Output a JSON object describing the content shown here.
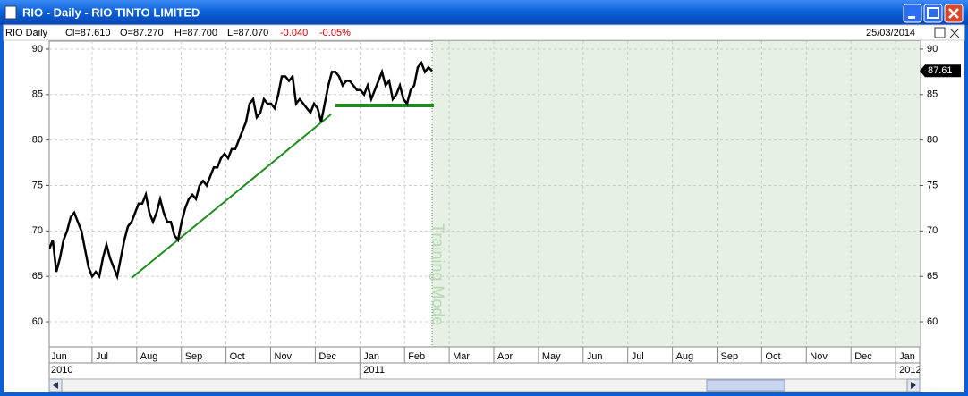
{
  "window": {
    "title": "RIO - Daily - RIO TINTO LIMITED"
  },
  "header": {
    "label": "RIO Daily",
    "close": "Cl=87.610",
    "open": "O=87.270",
    "high": "H=87.700",
    "low": "L=87.070",
    "change": "-0.040",
    "change_pct": "-0.05%",
    "date": "25/03/2014"
  },
  "chart_data": {
    "type": "line",
    "annotation": "Training Mode",
    "months": [
      "Jun",
      "Jul",
      "Aug",
      "Sep",
      "Oct",
      "Nov",
      "Dec",
      "Jan",
      "Feb",
      "Mar",
      "Apr",
      "May",
      "Jun",
      "Jul",
      "Aug",
      "Sep",
      "Oct",
      "Nov",
      "Dec",
      "Jan"
    ],
    "years": [
      "2010",
      "2011",
      "2012"
    ],
    "ylim": [
      57.25,
      90.88
    ],
    "yticks": [
      60,
      65,
      70,
      75,
      80,
      85,
      90
    ],
    "grid": true,
    "last_value": 87.61,
    "series": [
      {
        "name": "RIO",
        "color": "#000000",
        "values": [
          68,
          69,
          65.5,
          67,
          69,
          70,
          71.5,
          72,
          71,
          70,
          68,
          66,
          65,
          65.5,
          65,
          67,
          68.5,
          67,
          66,
          65,
          67,
          69,
          70.5,
          71,
          72,
          73,
          73,
          74,
          72,
          71,
          72,
          73.5,
          72,
          71,
          71,
          69.5,
          69,
          71,
          72.5,
          73.5,
          74,
          73.5,
          75,
          75.5,
          75,
          76,
          77,
          77,
          78,
          78.5,
          78,
          79,
          79,
          80,
          81,
          82,
          84,
          84.5,
          82.5,
          83,
          84.5,
          84,
          84,
          83.5,
          85,
          87,
          87,
          86.5,
          87,
          84,
          84.5,
          84,
          83.5,
          83,
          84,
          83.5,
          82,
          84,
          86,
          87.5,
          87.5,
          87,
          86,
          86.5,
          86.5,
          86,
          85.5,
          85.5,
          85,
          86,
          84.5,
          85.5,
          86.5,
          87.5,
          86,
          86.5,
          84.5,
          85,
          86,
          84.5,
          84,
          85.5,
          86,
          88,
          88.5,
          87.5,
          88,
          87.6
        ]
      }
    ]
  }
}
